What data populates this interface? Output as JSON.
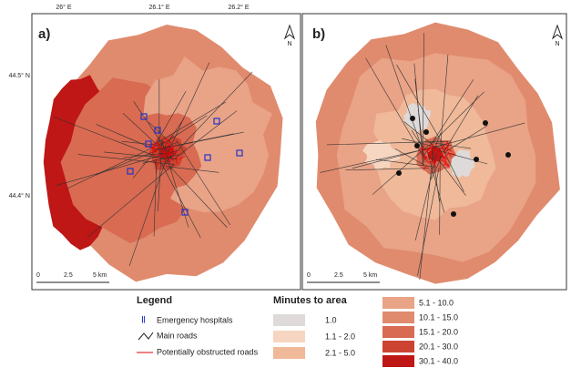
{
  "panels": [
    {
      "label": "a)",
      "scale_labels": [
        "0",
        "2.5",
        "5 km"
      ],
      "north": "N"
    },
    {
      "label": "b)",
      "scale_labels": [
        "0",
        "2.5",
        "5 km"
      ],
      "north": "N"
    }
  ],
  "lon_labels": [
    "26° E",
    "26.1° E",
    "26.2° E"
  ],
  "lat_labels": [
    "44.5° N",
    "44.4° N"
  ],
  "legend": {
    "title": "Legend",
    "items": [
      "Emergency hospitals",
      "Main roads",
      "Potentially obstructed roads"
    ]
  },
  "minutes": {
    "title": "Minutes to area",
    "classes": [
      {
        "label": "1.0",
        "color": "#dedad9"
      },
      {
        "label": "1.1 - 2.0",
        "color": "#f6d6c1"
      },
      {
        "label": "2.1 - 5.0",
        "color": "#efb99a"
      },
      {
        "label": "5.1 - 10.0",
        "color": "#e9a387"
      },
      {
        "label": "10.1 - 15.0",
        "color": "#e08b6e"
      },
      {
        "label": "15.1 - 20.0",
        "color": "#d86b52"
      },
      {
        "label": "20.1 - 30.0",
        "color": "#cc4431"
      },
      {
        "label": "30.1 - 40.0",
        "color": "#bf1616"
      }
    ]
  }
}
